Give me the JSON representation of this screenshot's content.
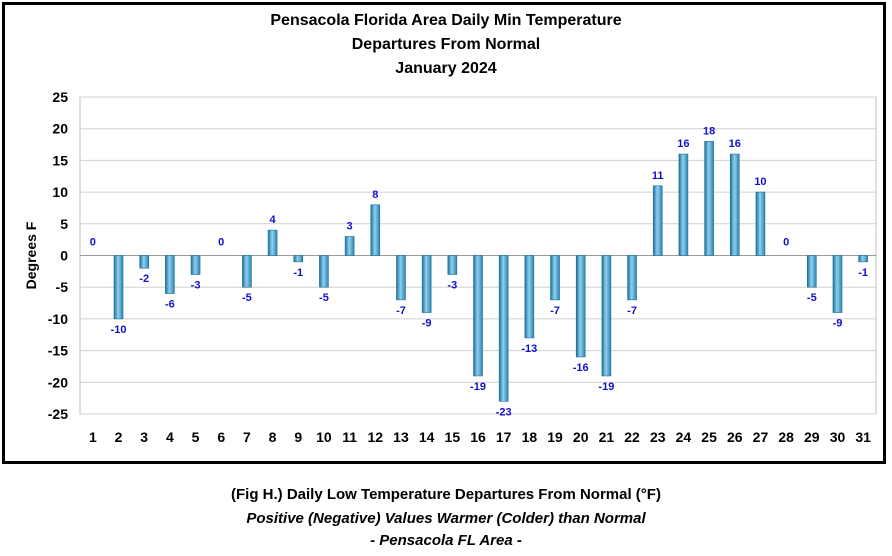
{
  "chart_data": {
    "type": "bar",
    "title": [
      "Pensacola Florida Area Daily Min Temperature",
      "Departures From Normal",
      "January 2024"
    ],
    "xlabel": "",
    "ylabel": "Degrees F",
    "ylim": [
      -25,
      25
    ],
    "yticks": [
      "25",
      "20",
      "15",
      "10",
      "5",
      "0",
      "-5",
      "-10",
      "-15",
      "-20",
      "-25"
    ],
    "ytick_values": [
      25,
      20,
      15,
      10,
      5,
      0,
      -5,
      -10,
      -15,
      -20,
      -25
    ],
    "categories": [
      "1",
      "2",
      "3",
      "4",
      "5",
      "6",
      "7",
      "8",
      "9",
      "10",
      "11",
      "12",
      "13",
      "14",
      "15",
      "16",
      "17",
      "18",
      "19",
      "20",
      "21",
      "22",
      "23",
      "24",
      "25",
      "26",
      "27",
      "28",
      "29",
      "30",
      "31"
    ],
    "values": [
      0,
      -10,
      -2,
      -6,
      -3,
      0,
      -5,
      4,
      -1,
      -5,
      3,
      8,
      -7,
      -9,
      -3,
      -19,
      -23,
      -13,
      -7,
      -16,
      -19,
      -7,
      11,
      16,
      18,
      16,
      10,
      0,
      -5,
      -9,
      -1
    ],
    "data_labels": [
      "0",
      "-10",
      "-2",
      "-6",
      "-3",
      "0",
      "-5",
      "4",
      "-1",
      "-5",
      "3",
      "8",
      "-7",
      "-9",
      "-3",
      "-19",
      "-23",
      "-13",
      "-7",
      "-16",
      "-19",
      "-7",
      "11",
      "16",
      "18",
      "16",
      "10",
      "0",
      "-5",
      "-9",
      "-1"
    ],
    "grid": true,
    "colors": {
      "bar": "#3a9ac9",
      "bar_dark": "#1f6f99",
      "bar_light": "#8fd0ee",
      "label": "#1010d0",
      "grid": "#d0d0d0"
    }
  },
  "caption": {
    "line1": "(Fig H.) Daily Low Temperature Departures From Normal (°F)",
    "line2": "Positive (Negative) Values Warmer (Colder) than Normal",
    "line3": "- Pensacola FL Area -"
  }
}
